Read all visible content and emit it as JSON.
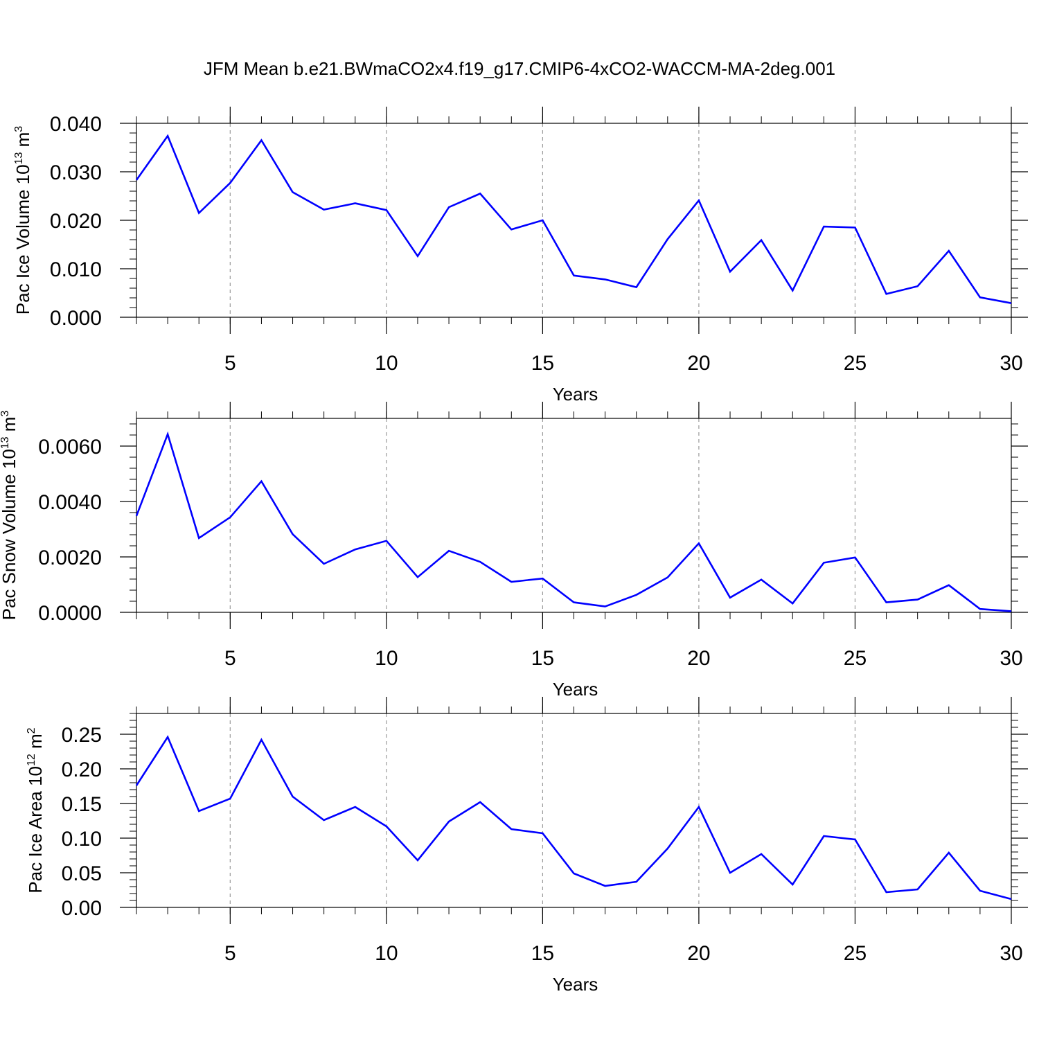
{
  "title": "JFM Mean b.e21.BWmaCO2x4.f19_g17.CMIP6-4xCO2-WACCM-MA-2deg.001",
  "colors": {
    "series": "#0000ff",
    "grid": "#999999",
    "axis": "#000000"
  },
  "chart_data": [
    {
      "type": "line",
      "xlabel": "Years",
      "ylabel": "Pac Ice Volume 10",
      "ylabel_exp": "13",
      "ylabel_unit": " m",
      "ylabel_unit_exp": "3",
      "xlim": [
        2,
        30
      ],
      "ylim": [
        0,
        0.04
      ],
      "xticks": [
        "5",
        "10",
        "15",
        "20",
        "25",
        "30"
      ],
      "yticks": [
        "0.000",
        "0.010",
        "0.020",
        "0.030",
        "0.040"
      ],
      "grid": "vertical dashed",
      "x": [
        2,
        3,
        4,
        5,
        6,
        7,
        8,
        9,
        10,
        11,
        12,
        13,
        14,
        15,
        16,
        17,
        18,
        19,
        20,
        21,
        22,
        23,
        24,
        25,
        26,
        27,
        28,
        29,
        30
      ],
      "values": [
        0.0283,
        0.0374,
        0.0215,
        0.0277,
        0.0365,
        0.0258,
        0.0222,
        0.0235,
        0.0221,
        0.0126,
        0.0227,
        0.0255,
        0.0181,
        0.02,
        0.0086,
        0.0078,
        0.0062,
        0.0161,
        0.0241,
        0.0094,
        0.0159,
        0.0055,
        0.0187,
        0.0185,
        0.0048,
        0.0064,
        0.0137,
        0.0041,
        0.0029
      ]
    },
    {
      "type": "line",
      "xlabel": "Years",
      "ylabel": "Pac Snow Volume 10",
      "ylabel_exp": "13",
      "ylabel_unit": " m",
      "ylabel_unit_exp": "3",
      "xlim": [
        2,
        30
      ],
      "ylim": [
        0,
        0.007
      ],
      "xticks": [
        "5",
        "10",
        "15",
        "20",
        "25",
        "30"
      ],
      "yticks": [
        "0.0000",
        "0.0020",
        "0.0040",
        "0.0060"
      ],
      "grid": "vertical dashed",
      "x": [
        2,
        3,
        4,
        5,
        6,
        7,
        8,
        9,
        10,
        11,
        12,
        13,
        14,
        15,
        16,
        17,
        18,
        19,
        20,
        21,
        22,
        23,
        24,
        25,
        26,
        27,
        28,
        29,
        30
      ],
      "values": [
        0.00348,
        0.00643,
        0.00268,
        0.00343,
        0.00473,
        0.00282,
        0.00175,
        0.00227,
        0.00258,
        0.00127,
        0.00222,
        0.00182,
        0.0011,
        0.00122,
        0.00036,
        0.00021,
        0.00063,
        0.00126,
        0.00249,
        0.00053,
        0.00118,
        0.00032,
        0.00179,
        0.00198,
        0.00036,
        0.00046,
        0.00098,
        0.00012,
        4e-05
      ]
    },
    {
      "type": "line",
      "xlabel": "Years",
      "ylabel": "Pac Ice Area 10",
      "ylabel_exp": "12",
      "ylabel_unit": " m",
      "ylabel_unit_exp": "2",
      "xlim": [
        2,
        30
      ],
      "ylim": [
        0,
        0.28
      ],
      "xticks": [
        "5",
        "10",
        "15",
        "20",
        "25",
        "30"
      ],
      "yticks": [
        "0.00",
        "0.05",
        "0.10",
        "0.15",
        "0.20",
        "0.25"
      ],
      "grid": "vertical dashed",
      "x": [
        2,
        3,
        4,
        5,
        6,
        7,
        8,
        9,
        10,
        11,
        12,
        13,
        14,
        15,
        16,
        17,
        18,
        19,
        20,
        21,
        22,
        23,
        24,
        25,
        26,
        27,
        28,
        29,
        30
      ],
      "values": [
        0.176,
        0.246,
        0.139,
        0.157,
        0.242,
        0.16,
        0.126,
        0.145,
        0.117,
        0.068,
        0.124,
        0.152,
        0.113,
        0.107,
        0.049,
        0.031,
        0.037,
        0.085,
        0.145,
        0.05,
        0.077,
        0.033,
        0.103,
        0.098,
        0.022,
        0.026,
        0.079,
        0.024,
        0.012
      ]
    }
  ]
}
